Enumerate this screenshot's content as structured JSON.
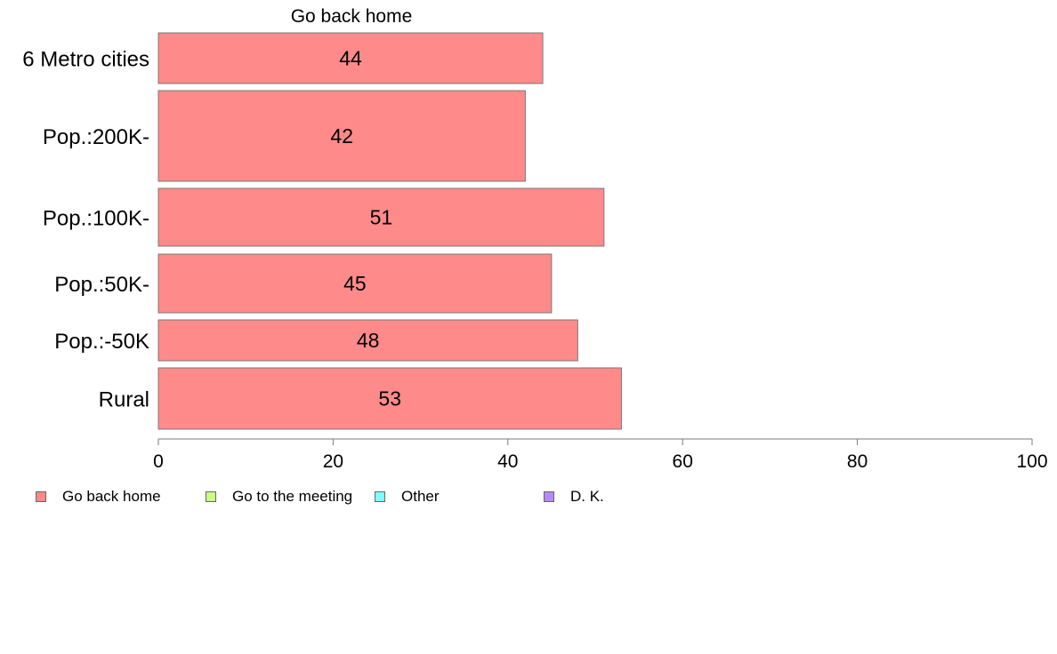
{
  "chart_data": {
    "type": "bar",
    "orientation": "horizontal",
    "title": "Go back home",
    "categories": [
      "6 Metro cities",
      "Pop.:200K-",
      "Pop.:100K-",
      "Pop.:50K-",
      "Pop.:-50K",
      "Rural"
    ],
    "values": [
      44,
      42,
      51,
      45,
      48,
      53
    ],
    "data_labels": [
      "44",
      "42",
      "51",
      "45",
      "48",
      "53"
    ],
    "xlim": [
      0,
      100
    ],
    "x_ticks": [
      0,
      20,
      40,
      60,
      80,
      100
    ],
    "x_tick_labels": [
      "0",
      "20",
      "40",
      "60",
      "80",
      "100"
    ],
    "xlabel": "",
    "ylabel": "",
    "grid": false,
    "bar_color": "#ff8a8a",
    "legend_position": "bottom",
    "legend": [
      {
        "label": "Go back home",
        "color": "#ff8a8a"
      },
      {
        "label": "Go to the meeting",
        "color": "#c8ff80"
      },
      {
        "label": "Other",
        "color": "#80ffff"
      },
      {
        "label": "D. K.",
        "color": "#b88aff"
      }
    ]
  }
}
